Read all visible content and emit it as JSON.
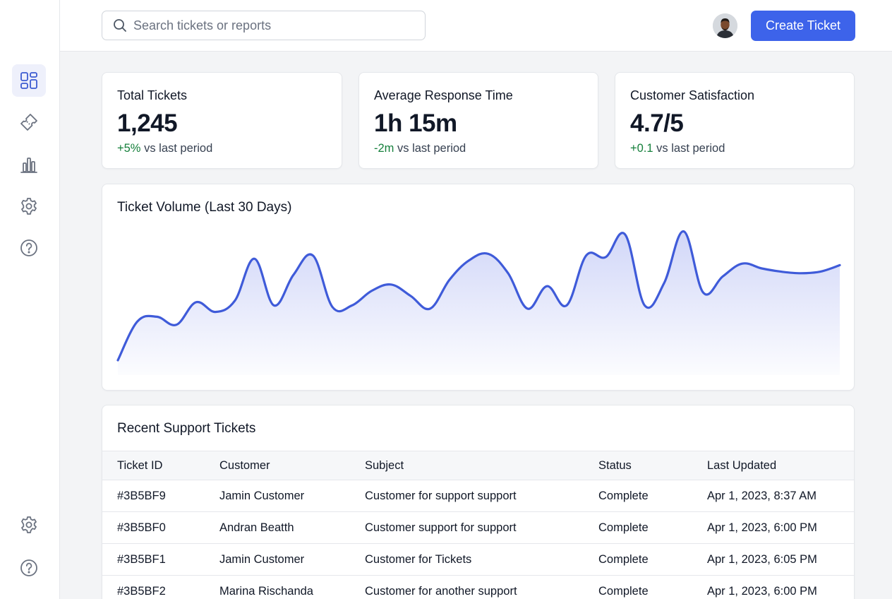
{
  "header": {
    "search_placeholder": "Search tickets or reports",
    "create_button": "Create Ticket"
  },
  "sidebar": {
    "items": [
      {
        "icon": "dashboard-icon",
        "active": true
      },
      {
        "icon": "ticket-icon",
        "active": false
      },
      {
        "icon": "bar-chart-icon",
        "active": false
      },
      {
        "icon": "gear-icon",
        "active": false
      },
      {
        "icon": "help-icon",
        "active": false
      }
    ],
    "bottom_items": [
      {
        "icon": "gear-icon"
      },
      {
        "icon": "help-icon"
      }
    ]
  },
  "stats": [
    {
      "label": "Total Tickets",
      "value": "1,245",
      "change": "+5%",
      "suffix": " vs last period"
    },
    {
      "label": "Average Response Time",
      "value": "1h 15m",
      "change": "-2m",
      "suffix": " vs last period"
    },
    {
      "label": "Customer Satisfaction",
      "value": "4.7/5",
      "change": "+0.1",
      "suffix": " vs last period"
    }
  ],
  "colors": {
    "accent": "#3d63ea",
    "positive": "#16803c",
    "line": "#3f5bd9"
  },
  "chart": {
    "title": "Ticket Volume (Last 30 Days)"
  },
  "chart_data": {
    "type": "area",
    "title": "Ticket Volume (Last 30 Days)",
    "xlabel": "",
    "ylabel": "",
    "grid": false,
    "ylim": [
      0,
      100
    ],
    "x": [
      1,
      2,
      3,
      4,
      5,
      6,
      7,
      8,
      9,
      10,
      11,
      12,
      13,
      14,
      15,
      16,
      17,
      18,
      19,
      20,
      21,
      22,
      23,
      24,
      25,
      26,
      27,
      28,
      29,
      30,
      31,
      32,
      33,
      34,
      35,
      36,
      37,
      38
    ],
    "values": [
      18,
      42,
      45,
      40,
      54,
      48,
      55,
      81,
      52,
      71,
      83,
      51,
      52,
      61,
      65,
      58,
      50,
      68,
      80,
      84,
      72,
      50,
      64,
      52,
      83,
      82,
      96,
      52,
      66,
      98,
      60,
      70,
      78,
      75,
      73,
      72,
      73,
      77
    ]
  },
  "table": {
    "title": "Recent Support Tickets",
    "columns": [
      "Ticket ID",
      "Customer",
      "Subject",
      "Status",
      "Last Updated"
    ],
    "rows": [
      [
        "#3B5BF9",
        "Jamin Customer",
        "Customer for support support",
        "Complete",
        "Apr 1, 2023, 8:37 AM"
      ],
      [
        "#3B5BF0",
        "Andran Beatth",
        "Customer support for support",
        "Complete",
        "Apr 1, 2023, 6:00 PM"
      ],
      [
        "#3B5BF1",
        "Jamin Customer",
        "Customer for Tickets",
        "Complete",
        "Apr 1, 2023, 6:05 PM"
      ],
      [
        "#3B5BF2",
        "Marina Rischanda",
        "Customer for another support",
        "Complete",
        "Apr 1, 2023, 6:00 PM"
      ]
    ]
  }
}
